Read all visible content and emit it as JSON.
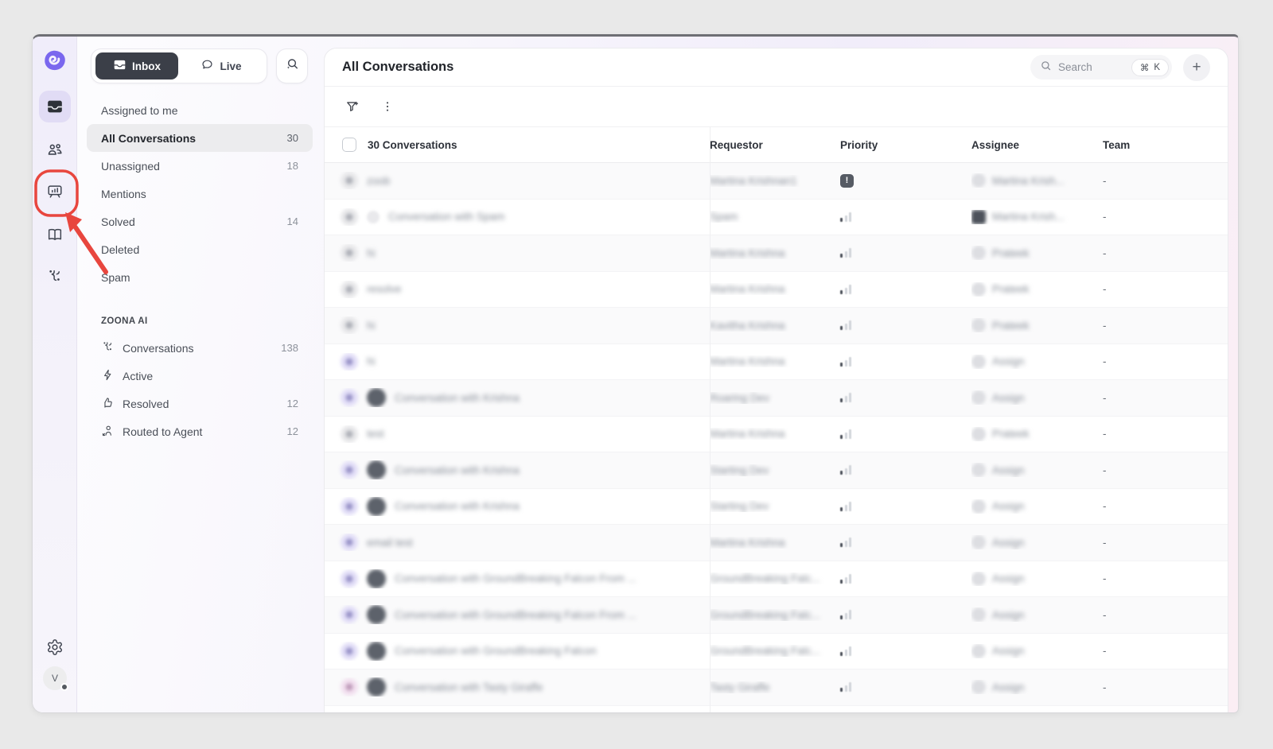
{
  "annotation": {
    "color": "#e8463e"
  },
  "rail": {
    "logo_color": "#7a67ee",
    "items": [
      {
        "name": "inbox",
        "active": true
      },
      {
        "name": "contacts",
        "active": false
      },
      {
        "name": "analytics",
        "active": false,
        "annotated": true
      },
      {
        "name": "knowledge-base",
        "active": false
      },
      {
        "name": "ai-sparkle",
        "active": false
      }
    ],
    "avatar_initial": "V"
  },
  "sidebar": {
    "tabs": [
      {
        "label": "Inbox",
        "active": true
      },
      {
        "label": "Live",
        "active": false
      }
    ],
    "nav": [
      {
        "label": "Assigned to me",
        "count": ""
      },
      {
        "label": "All Conversations",
        "count": "30",
        "selected": true
      },
      {
        "label": "Unassigned",
        "count": "18"
      },
      {
        "label": "Mentions",
        "count": ""
      },
      {
        "label": "Solved",
        "count": "14"
      },
      {
        "label": "Deleted",
        "count": ""
      },
      {
        "label": "Spam",
        "count": ""
      }
    ],
    "section": {
      "label": "ZOONA AI",
      "items": [
        {
          "icon": "sparkle",
          "label": "Conversations",
          "count": "138"
        },
        {
          "icon": "lightning",
          "label": "Active",
          "count": ""
        },
        {
          "icon": "thumbs-up",
          "label": "Resolved",
          "count": "12"
        },
        {
          "icon": "person-arrow",
          "label": "Routed to Agent",
          "count": "12"
        }
      ]
    }
  },
  "main": {
    "title": "All Conversations",
    "search": {
      "placeholder": "Search",
      "shortcut_mod": "⌘",
      "shortcut_key": "K"
    },
    "plus_label": "+",
    "table": {
      "select_header": "30 Conversations",
      "columns": [
        "Requestor",
        "Priority",
        "Assignee",
        "Team"
      ],
      "rows": [
        {
          "avatar": "gray",
          "thumb": false,
          "lightdot": false,
          "title": "zoob",
          "requestor": "Martina Krishnan1",
          "priority": "urgent",
          "assignee": "Martina Krish...",
          "assignee_avatar": "circle",
          "team": "-"
        },
        {
          "avatar": "gray",
          "thumb": false,
          "lightdot": true,
          "title": "Conversation with Spam",
          "requestor": "Spam",
          "priority": "low",
          "assignee": "Martina Krish...",
          "assignee_avatar": "square",
          "team": "-"
        },
        {
          "avatar": "gray",
          "thumb": false,
          "lightdot": false,
          "title": "hi",
          "requestor": "Martina Krishna",
          "priority": "low",
          "assignee": "Prateek",
          "assignee_avatar": "circle",
          "team": "-"
        },
        {
          "avatar": "gray",
          "thumb": false,
          "lightdot": false,
          "title": "resolve",
          "requestor": "Martina Krishna",
          "priority": "low",
          "assignee": "Prateek",
          "assignee_avatar": "circle",
          "team": "-"
        },
        {
          "avatar": "gray",
          "thumb": false,
          "lightdot": false,
          "title": "hi",
          "requestor": "Kavitha Krishna",
          "priority": "low",
          "assignee": "Prateek",
          "assignee_avatar": "circle",
          "team": "-"
        },
        {
          "avatar": "lavender",
          "thumb": false,
          "lightdot": false,
          "title": "hi",
          "requestor": "Martina Krishna",
          "priority": "low",
          "assignee": "Assign",
          "assignee_avatar": "circle",
          "team": "-"
        },
        {
          "avatar": "lavender",
          "thumb": true,
          "lightdot": false,
          "title": "Conversation with Krishna",
          "requestor": "Roaring Dev",
          "priority": "low",
          "assignee": "Assign",
          "assignee_avatar": "circle",
          "team": "-"
        },
        {
          "avatar": "gray",
          "thumb": false,
          "lightdot": false,
          "title": "test",
          "requestor": "Martina Krishna",
          "priority": "low",
          "assignee": "Prateek",
          "assignee_avatar": "circle",
          "team": "-"
        },
        {
          "avatar": "lavender",
          "thumb": true,
          "lightdot": false,
          "title": "Conversation with Krishna",
          "requestor": "Starting Dev",
          "priority": "low",
          "assignee": "Assign",
          "assignee_avatar": "circle",
          "team": "-"
        },
        {
          "avatar": "lavender",
          "thumb": true,
          "lightdot": false,
          "title": "Conversation with Krishna",
          "requestor": "Starting Dev",
          "priority": "low",
          "assignee": "Assign",
          "assignee_avatar": "circle",
          "team": "-"
        },
        {
          "avatar": "lavender",
          "thumb": false,
          "lightdot": false,
          "title": "email test",
          "requestor": "Martina Krishna",
          "priority": "low",
          "assignee": "Assign",
          "assignee_avatar": "circle",
          "team": "-"
        },
        {
          "avatar": "lavender",
          "thumb": true,
          "lightdot": false,
          "title": "Conversation with GroundBreaking Falcon From ...",
          "requestor": "GroundBreaking Falc...",
          "priority": "low",
          "assignee": "Assign",
          "assignee_avatar": "circle",
          "team": "-"
        },
        {
          "avatar": "lavender",
          "thumb": true,
          "lightdot": false,
          "title": "Conversation with GroundBreaking Falcon From ...",
          "requestor": "GroundBreaking Falc...",
          "priority": "low",
          "assignee": "Assign",
          "assignee_avatar": "circle",
          "team": "-"
        },
        {
          "avatar": "lavender",
          "thumb": true,
          "lightdot": false,
          "title": "Conversation with GroundBreaking Falcon",
          "requestor": "GroundBreaking Falc...",
          "priority": "low",
          "assignee": "Assign",
          "assignee_avatar": "circle",
          "team": "-"
        },
        {
          "avatar": "pink",
          "thumb": true,
          "lightdot": false,
          "title": "Conversation with Tasty Giraffe",
          "requestor": "Tasty Giraffe",
          "priority": "low",
          "assignee": "Assign",
          "assignee_avatar": "circle",
          "team": "-"
        }
      ]
    }
  }
}
